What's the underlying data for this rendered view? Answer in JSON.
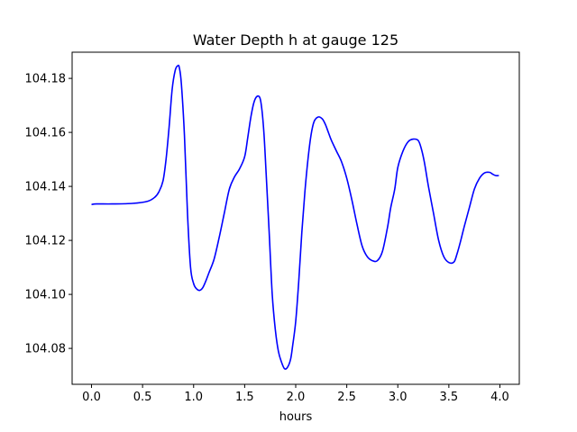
{
  "chart_data": {
    "type": "line",
    "title": "Water Depth h at gauge 125",
    "xlabel": "hours",
    "ylabel": "",
    "xlim": [
      -0.19,
      4.19
    ],
    "ylim": [
      104.0667,
      104.1897
    ],
    "x_ticks": [
      0.0,
      0.5,
      1.0,
      1.5,
      2.0,
      2.5,
      3.0,
      3.5,
      4.0
    ],
    "x_tick_labels": [
      "0.0",
      "0.5",
      "1.0",
      "1.5",
      "2.0",
      "2.5",
      "3.0",
      "3.5",
      "4.0"
    ],
    "y_ticks": [
      104.08,
      104.1,
      104.12,
      104.14,
      104.16,
      104.18
    ],
    "y_tick_labels": [
      "104.08",
      "104.10",
      "104.12",
      "104.14",
      "104.16",
      "104.18"
    ],
    "grid": false,
    "series": [
      {
        "color": "#0000ff",
        "x": [
          0.0,
          0.05,
          0.2,
          0.4,
          0.55,
          0.62,
          0.66,
          0.7,
          0.73,
          0.76,
          0.79,
          0.82,
          0.845,
          0.86,
          0.88,
          0.91,
          0.94,
          0.97,
          1.0,
          1.03,
          1.06,
          1.09,
          1.12,
          1.15,
          1.2,
          1.25,
          1.3,
          1.35,
          1.4,
          1.45,
          1.5,
          1.53,
          1.56,
          1.59,
          1.62,
          1.65,
          1.67,
          1.69,
          1.71,
          1.74,
          1.77,
          1.8,
          1.83,
          1.86,
          1.89,
          1.92,
          1.95,
          1.97,
          2.0,
          2.03,
          2.06,
          2.09,
          2.12,
          2.15,
          2.18,
          2.22,
          2.26,
          2.29,
          2.32,
          2.35,
          2.4,
          2.45,
          2.5,
          2.55,
          2.6,
          2.65,
          2.7,
          2.75,
          2.8,
          2.85,
          2.9,
          2.93,
          2.97,
          3.0,
          3.05,
          3.1,
          3.15,
          3.2,
          3.23,
          3.26,
          3.3,
          3.35,
          3.4,
          3.45,
          3.5,
          3.55,
          3.58,
          3.61,
          3.65,
          3.7,
          3.75,
          3.8,
          3.85,
          3.9,
          3.93,
          3.96,
          3.99
        ],
        "y": [
          104.1333,
          104.1335,
          104.1335,
          104.1337,
          104.1345,
          104.136,
          104.138,
          104.142,
          104.15,
          104.162,
          104.176,
          104.183,
          104.1847,
          104.184,
          104.178,
          104.159,
          104.13,
          104.11,
          104.104,
          104.102,
          104.1015,
          104.1025,
          104.105,
          104.108,
          104.113,
          104.121,
          104.13,
          104.139,
          104.1435,
          104.1465,
          104.151,
          104.158,
          104.1655,
          104.171,
          104.1733,
          104.1727,
          104.168,
          104.159,
          104.145,
          104.123,
          104.1,
          104.087,
          104.079,
          104.075,
          104.0725,
          104.073,
          104.076,
          104.081,
          104.09,
          104.105,
          104.123,
          104.138,
          104.15,
          104.159,
          104.164,
          104.1657,
          104.165,
          104.163,
          104.16,
          104.157,
          104.153,
          104.149,
          104.143,
          104.135,
          104.126,
          104.118,
          104.114,
          104.1125,
          104.1125,
          104.116,
          104.125,
          104.132,
          104.139,
          104.147,
          104.153,
          104.1565,
          104.1575,
          104.157,
          104.154,
          104.149,
          104.14,
          104.13,
          104.12,
          104.114,
          104.1118,
          104.112,
          104.115,
          104.119,
          104.125,
          104.132,
          104.139,
          104.143,
          104.145,
          104.1452,
          104.1445,
          104.144,
          104.144
        ]
      }
    ]
  }
}
